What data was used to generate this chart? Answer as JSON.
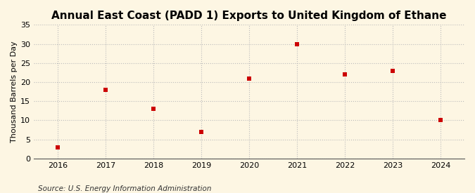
{
  "title": "Annual East Coast (PADD 1) Exports to United Kingdom of Ethane",
  "ylabel": "Thousand Barrels per Day",
  "source": "Source: U.S. Energy Information Administration",
  "x": [
    2016,
    2017,
    2018,
    2019,
    2020,
    2021,
    2022,
    2023,
    2024
  ],
  "y": [
    3.0,
    18.0,
    13.0,
    7.0,
    21.0,
    30.0,
    22.0,
    23.0,
    10.0
  ],
  "ylim": [
    0,
    35
  ],
  "yticks": [
    0,
    5,
    10,
    15,
    20,
    25,
    30,
    35
  ],
  "xlim": [
    2015.5,
    2024.5
  ],
  "xticks": [
    2016,
    2017,
    2018,
    2019,
    2020,
    2021,
    2022,
    2023,
    2024
  ],
  "marker_color": "#cc0000",
  "marker": "s",
  "marker_size": 4,
  "background_color": "#fdf6e3",
  "plot_bg_color": "#fdf6e3",
  "grid_color": "#bbbbbb",
  "title_fontsize": 11,
  "label_fontsize": 8,
  "tick_fontsize": 8,
  "source_fontsize": 7.5
}
